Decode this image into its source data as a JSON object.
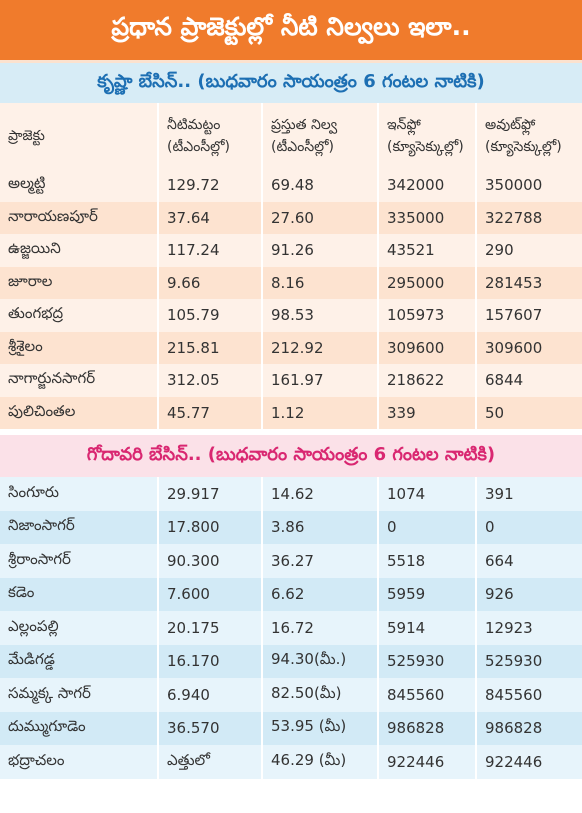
{
  "header": {
    "title": "ప్రధాన ప్రాజెక్టుల్లో నీటి నిల్వలు ఇలా.."
  },
  "sections": [
    {
      "title": "కృష్ణా బేసిన్.. (బుధవారం సాయంత్రం 6 గంటల నాటికి)",
      "columns": [
        [
          "ప్రాజెక్టు"
        ],
        [
          "నీటిమట్టం",
          "(టీఎంసీల్లో)"
        ],
        [
          "ప్రస్తుత నిల్వ",
          "(టీఎంసీల్లో)"
        ],
        [
          "ఇన్‌ఫ్లో",
          "(క్యూసెక్కుల్లో)"
        ],
        [
          "అవుట్‌ఫ్లో",
          "(క్యూసెక్కుల్లో)"
        ]
      ],
      "rows": [
        [
          "అల్మట్టి",
          "129.72",
          "69.48",
          "342000",
          "350000"
        ],
        [
          "నారాయణపూర్",
          "37.64",
          "27.60",
          "335000",
          "322788"
        ],
        [
          "ఉజ్జయిని",
          "117.24",
          "91.26",
          "43521",
          "290"
        ],
        [
          "జూరాల",
          "9.66",
          "8.16",
          "295000",
          "281453"
        ],
        [
          "తుంగభద్ర",
          "105.79",
          "98.53",
          "105973",
          "157607"
        ],
        [
          "శ్రీశైలం",
          "215.81",
          "212.92",
          "309600",
          "309600"
        ],
        [
          "నాగార్జునసాగర్",
          "312.05",
          "161.97",
          "218622",
          "6844"
        ],
        [
          "పులిచింతల",
          "45.77",
          "1.12",
          "339",
          "50"
        ]
      ]
    },
    {
      "title": "గోదావరి బేసిన్.. (బుధవారం సాయంత్రం 6 గంటల నాటికి)",
      "rows": [
        [
          "సింగూరు",
          "29.917",
          "14.62",
          "1074",
          "391"
        ],
        [
          "నిజాంసాగర్",
          "17.800",
          "3.86",
          "0",
          "0"
        ],
        [
          "శ్రీరాంసాగర్",
          "90.300",
          "36.27",
          "5518",
          "664"
        ],
        [
          "కడెం",
          "7.600",
          "6.62",
          "5959",
          "926"
        ],
        [
          "ఎల్లంపల్లి",
          "20.175",
          "16.72",
          "5914",
          "12923"
        ],
        [
          "మేడిగడ్డ",
          "16.170",
          "94.30(మీ.)",
          "525930",
          "525930"
        ],
        [
          "సమ్మక్క సాగర్",
          "6.940",
          "82.50(మీ)",
          "845560",
          "845560"
        ],
        [
          "దుమ్ముగూడెం",
          "36.570",
          "53.95 (మీ)",
          "986828",
          "986828"
        ],
        [
          "భద్రాచలం",
          "ఎత్తులో",
          "46.29 (మీ)",
          "922446",
          "922446"
        ]
      ]
    }
  ]
}
